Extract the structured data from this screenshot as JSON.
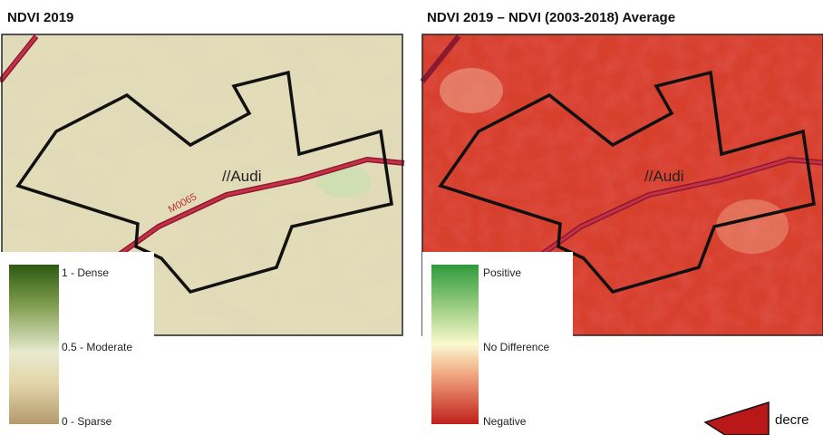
{
  "panels": [
    {
      "title": "NDVI 2019",
      "map_labels": {
        "place": "//Audi",
        "road": "M0065"
      },
      "legend": [
        "1 - Dense",
        "0.5 - Moderate",
        "0 - Sparse"
      ]
    },
    {
      "title": "NDVI 2019 – NDVI (2003-2018) Average",
      "map_labels": {
        "place": "//Audi"
      },
      "legend": [
        "Positive",
        "No Difference",
        "Negative"
      ]
    }
  ],
  "arrow_label": "decre"
}
